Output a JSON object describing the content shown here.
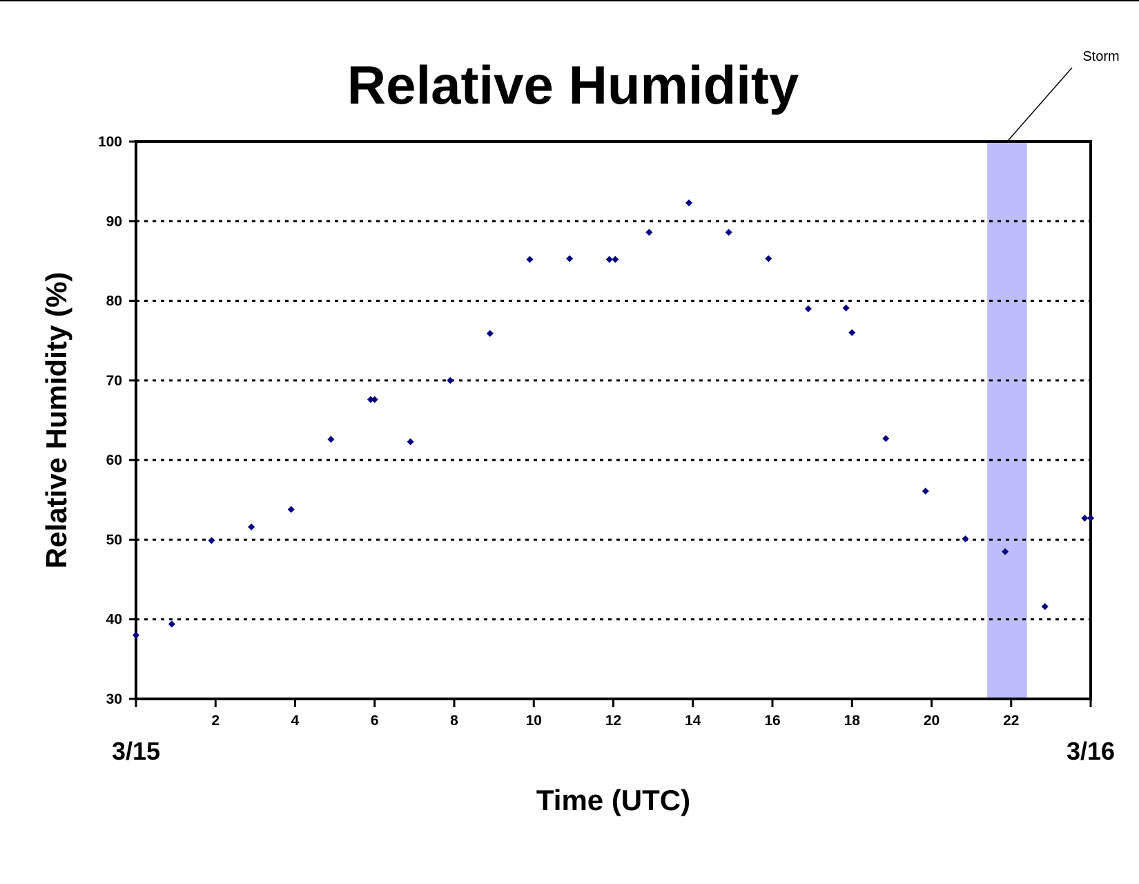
{
  "chart_data": {
    "type": "scatter",
    "title": "Relative Humidity",
    "xlabel": "Time (UTC)",
    "ylabel": "Relative Humidity (%)",
    "xlim": [
      0,
      24
    ],
    "ylim": [
      30,
      100
    ],
    "x_ticks": [
      0,
      2,
      4,
      6,
      8,
      10,
      12,
      14,
      16,
      18,
      20,
      22,
      24
    ],
    "x_tick_labels": [
      "",
      "2",
      "4",
      "6",
      "8",
      "10",
      "12",
      "14",
      "16",
      "18",
      "20",
      "22",
      ""
    ],
    "y_ticks": [
      30,
      40,
      50,
      60,
      70,
      80,
      90,
      100
    ],
    "y_tick_labels": [
      "30",
      "40",
      "50",
      "60",
      "70",
      "80",
      "90",
      "100"
    ],
    "date_labels": [
      {
        "x": 0,
        "label": "3/15"
      },
      {
        "x": 24,
        "label": "3/16"
      }
    ],
    "grid": {
      "y": true,
      "x": false,
      "style": "dotted"
    },
    "storm": {
      "x_start": 21.4,
      "x_end": 22.4,
      "label": "Storm",
      "color": "#bdbdfb"
    },
    "marker_color": "#000080",
    "series": [
      {
        "x": [
          0,
          0.9,
          1.9,
          2.9,
          3.9,
          4.9,
          5.9,
          6.0,
          6.9,
          7.9,
          8.9,
          9.9,
          10.9,
          11.9,
          12.05,
          12.9,
          13.9,
          14.9,
          15.9,
          16.9,
          17.85,
          18.0,
          18.85,
          19.85,
          20.85,
          21.85,
          22.85,
          23.85,
          24.0
        ],
        "y": [
          38,
          39.4,
          49.9,
          51.6,
          53.8,
          62.6,
          67.6,
          67.6,
          62.3,
          70,
          75.9,
          85.2,
          85.3,
          85.2,
          85.2,
          88.6,
          92.3,
          88.6,
          85.3,
          79,
          79.1,
          76,
          62.7,
          56.1,
          50.1,
          48.5,
          41.6,
          52.7,
          52.7
        ]
      }
    ]
  }
}
